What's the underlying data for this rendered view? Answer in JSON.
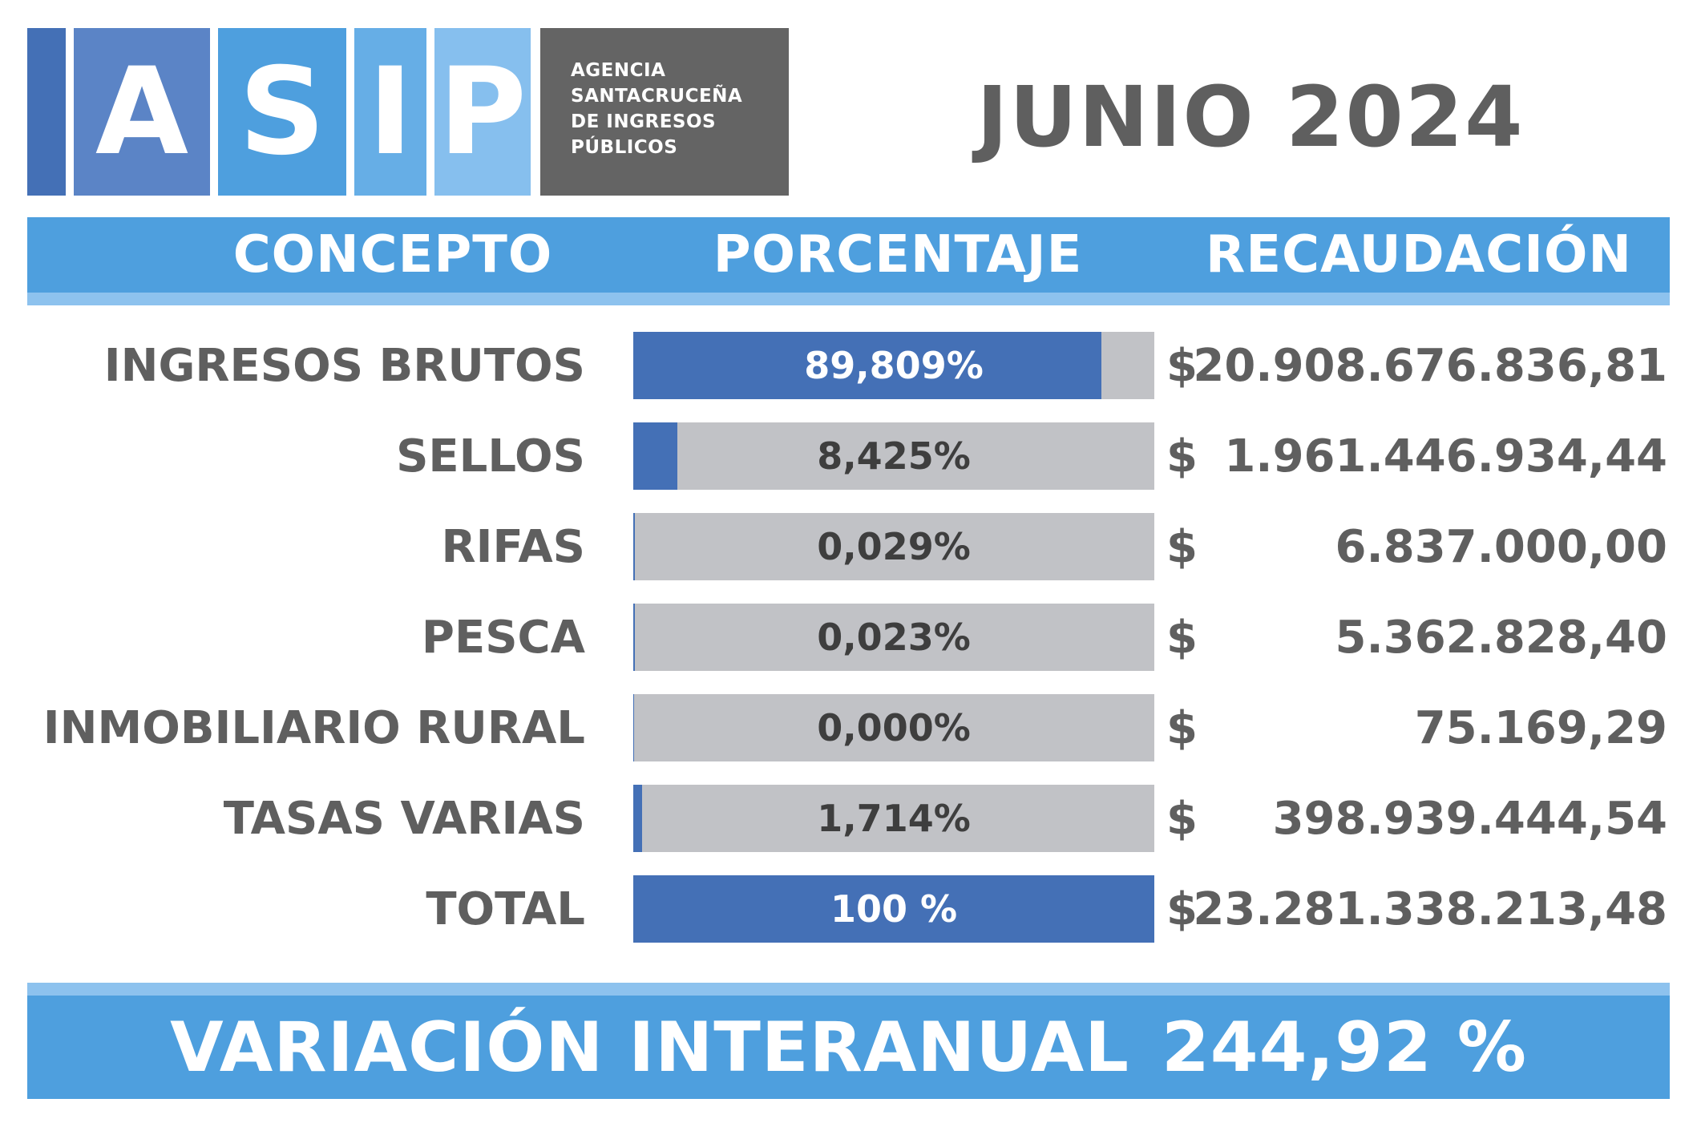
{
  "logo": {
    "letters": [
      "A",
      "S",
      "I",
      "P"
    ],
    "text_lines": [
      "AGENCIA",
      "SANTACRUCEÑA",
      "DE INGRESOS",
      "PÚBLICOS"
    ]
  },
  "period": "JUNIO 2024",
  "headers": {
    "concepto": "CONCEPTO",
    "porcentaje": "PORCENTAJE",
    "recaudacion": "RECAUDACIÓN"
  },
  "chart_data": {
    "type": "bar",
    "title": "JUNIO 2024",
    "rows": [
      {
        "concepto": "INGRESOS BRUTOS",
        "percent": 89.809,
        "label": "89,809%",
        "amount": "20.908.676.836,81"
      },
      {
        "concepto": "SELLOS",
        "percent": 8.425,
        "label": "8,425%",
        "amount": "1.961.446.934,44"
      },
      {
        "concepto": "RIFAS",
        "percent": 0.029,
        "label": "0,029%",
        "amount": "6.837.000,00"
      },
      {
        "concepto": "PESCA",
        "percent": 0.023,
        "label": "0,023%",
        "amount": "5.362.828,40"
      },
      {
        "concepto": "INMOBILIARIO RURAL",
        "percent": 0.0,
        "label": "0,000%",
        "amount": "75.169,29"
      },
      {
        "concepto": "TASAS VARIAS",
        "percent": 1.714,
        "label": "1,714%",
        "amount": "398.939.444,54"
      },
      {
        "concepto": "TOTAL",
        "percent": 100,
        "label": "100 %",
        "amount": "23.281.338.213,48"
      }
    ],
    "currency_symbol": "$",
    "xlim": [
      0,
      100
    ]
  },
  "footer": {
    "label": "VARIACIÓN INTERANUAL",
    "value": "244,92 %"
  },
  "colors": {
    "bar_fill": "#4470b6",
    "bar_track": "#c1c2c6",
    "header": "#4e9fde",
    "header_stripe": "#8dc2ee",
    "text_gray": "#5f5f5f",
    "logo_blocks": [
      "#4470b6",
      "#5b84c6",
      "#4e9fde",
      "#66aee6",
      "#86bfee"
    ],
    "logo_text_bg": "#646464"
  }
}
